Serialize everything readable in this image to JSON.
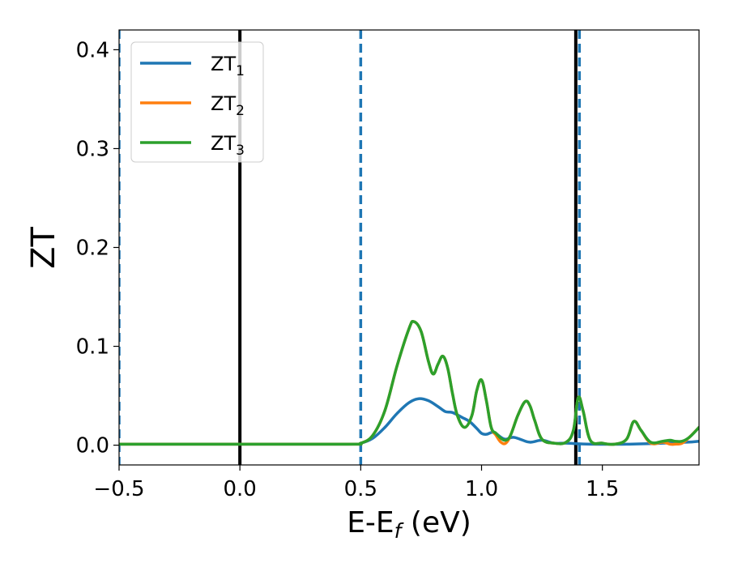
{
  "chart_data": {
    "type": "line",
    "xlabel": "E-E",
    "xlabel_sub": "f",
    "xlabel_unit": " (eV)",
    "ylabel": "ZT",
    "xlim": [
      -0.5,
      1.9
    ],
    "ylim": [
      -0.02,
      0.42
    ],
    "xticks": [
      -0.5,
      0.0,
      0.5,
      1.0,
      1.5
    ],
    "xtick_labels": [
      "−0.5",
      "0.0",
      "0.5",
      "1.0",
      "1.5"
    ],
    "yticks": [
      0.0,
      0.1,
      0.2,
      0.3,
      0.4
    ],
    "ytick_labels": [
      "0.0",
      "0.1",
      "0.2",
      "0.3",
      "0.4"
    ],
    "grid": false,
    "legend_position": "top-left",
    "vlines": [
      {
        "x": -0.5,
        "style": "dashed",
        "color": "#1f77b4"
      },
      {
        "x": 0.5,
        "style": "dashed",
        "color": "#1f77b4"
      },
      {
        "x": 1.405,
        "style": "dashed",
        "color": "#1f77b4"
      },
      {
        "x": 0.0,
        "style": "solid",
        "color": "#000000"
      },
      {
        "x": 1.39,
        "style": "solid",
        "color": "#000000"
      }
    ],
    "series": [
      {
        "name": "ZT",
        "sub": "1",
        "color": "#1f77b4",
        "x": [
          -0.5,
          0.0,
          0.45,
          0.5,
          0.55,
          0.6,
          0.65,
          0.7,
          0.74,
          0.78,
          0.82,
          0.85,
          0.88,
          0.92,
          0.95,
          0.98,
          1.0,
          1.02,
          1.05,
          1.08,
          1.1,
          1.13,
          1.16,
          1.2,
          1.25,
          1.3,
          1.35,
          1.45,
          1.6,
          1.75,
          1.85,
          1.9
        ],
        "values": [
          0.001,
          0.001,
          0.001,
          0.002,
          0.007,
          0.018,
          0.032,
          0.043,
          0.047,
          0.045,
          0.039,
          0.034,
          0.033,
          0.028,
          0.024,
          0.017,
          0.012,
          0.011,
          0.013,
          0.008,
          0.006,
          0.008,
          0.006,
          0.003,
          0.005,
          0.002,
          0.002,
          0.001,
          0.001,
          0.002,
          0.003,
          0.004
        ]
      },
      {
        "name": "ZT",
        "sub": "2",
        "color": "#ff7f0e",
        "x": [
          -0.5,
          0.0,
          0.45,
          0.5,
          0.55,
          0.6,
          0.65,
          0.7,
          0.72,
          0.75,
          0.78,
          0.8,
          0.82,
          0.84,
          0.86,
          0.88,
          0.9,
          0.93,
          0.96,
          0.98,
          1.0,
          1.02,
          1.04,
          1.06,
          1.08,
          1.1,
          1.12,
          1.15,
          1.18,
          1.2,
          1.22,
          1.25,
          1.3,
          1.35,
          1.38,
          1.4,
          1.42,
          1.45,
          1.5,
          1.55,
          1.6,
          1.63,
          1.66,
          1.7,
          1.75,
          1.78,
          1.8,
          1.83,
          1.86,
          1.9
        ],
        "values": [
          0.001,
          0.001,
          0.001,
          0.002,
          0.01,
          0.035,
          0.08,
          0.118,
          0.125,
          0.115,
          0.085,
          0.072,
          0.082,
          0.09,
          0.078,
          0.052,
          0.03,
          0.018,
          0.03,
          0.055,
          0.066,
          0.045,
          0.018,
          0.01,
          0.003,
          0.002,
          0.01,
          0.03,
          0.044,
          0.04,
          0.025,
          0.006,
          0.002,
          0.003,
          0.015,
          0.048,
          0.035,
          0.005,
          0.002,
          0.001,
          0.006,
          0.024,
          0.015,
          0.002,
          0.003,
          0.001,
          0.001,
          0.002,
          0.008,
          0.018
        ]
      },
      {
        "name": "ZT",
        "sub": "3",
        "color": "#2ca02c",
        "x": [
          -0.5,
          0.0,
          0.45,
          0.5,
          0.55,
          0.6,
          0.65,
          0.7,
          0.72,
          0.75,
          0.78,
          0.8,
          0.82,
          0.84,
          0.86,
          0.88,
          0.9,
          0.93,
          0.96,
          0.98,
          1.0,
          1.02,
          1.04,
          1.06,
          1.08,
          1.1,
          1.12,
          1.15,
          1.18,
          1.2,
          1.22,
          1.25,
          1.3,
          1.35,
          1.38,
          1.4,
          1.42,
          1.45,
          1.5,
          1.55,
          1.6,
          1.63,
          1.66,
          1.7,
          1.75,
          1.78,
          1.8,
          1.83,
          1.86,
          1.9
        ],
        "values": [
          0.001,
          0.001,
          0.001,
          0.002,
          0.01,
          0.035,
          0.08,
          0.118,
          0.125,
          0.115,
          0.085,
          0.072,
          0.082,
          0.09,
          0.078,
          0.052,
          0.03,
          0.018,
          0.03,
          0.055,
          0.066,
          0.045,
          0.018,
          0.012,
          0.007,
          0.005,
          0.01,
          0.03,
          0.044,
          0.04,
          0.025,
          0.006,
          0.002,
          0.003,
          0.015,
          0.048,
          0.035,
          0.005,
          0.002,
          0.001,
          0.006,
          0.024,
          0.015,
          0.003,
          0.004,
          0.005,
          0.004,
          0.004,
          0.008,
          0.018
        ]
      }
    ]
  }
}
